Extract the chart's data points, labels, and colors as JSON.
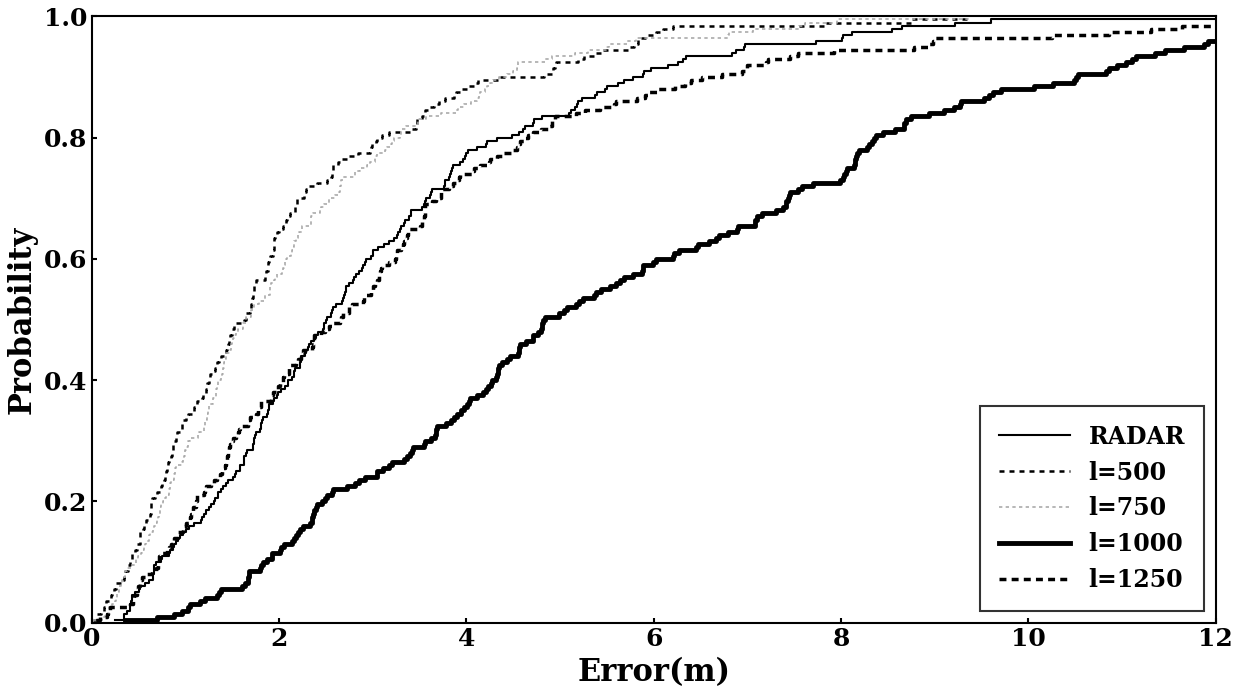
{
  "title": "",
  "xlabel": "Error(m)",
  "ylabel": "Probability",
  "xlim": [
    0,
    12
  ],
  "ylim": [
    0,
    1
  ],
  "xticks": [
    0,
    2,
    4,
    6,
    8,
    10,
    12
  ],
  "yticks": [
    0,
    0.2,
    0.4,
    0.6,
    0.8,
    1
  ],
  "legend_labels": [
    "RADAR",
    "l=500",
    "l=750",
    "l=1000",
    "l=1250"
  ],
  "legend_loc": "lower right",
  "background_color": "#ffffff"
}
